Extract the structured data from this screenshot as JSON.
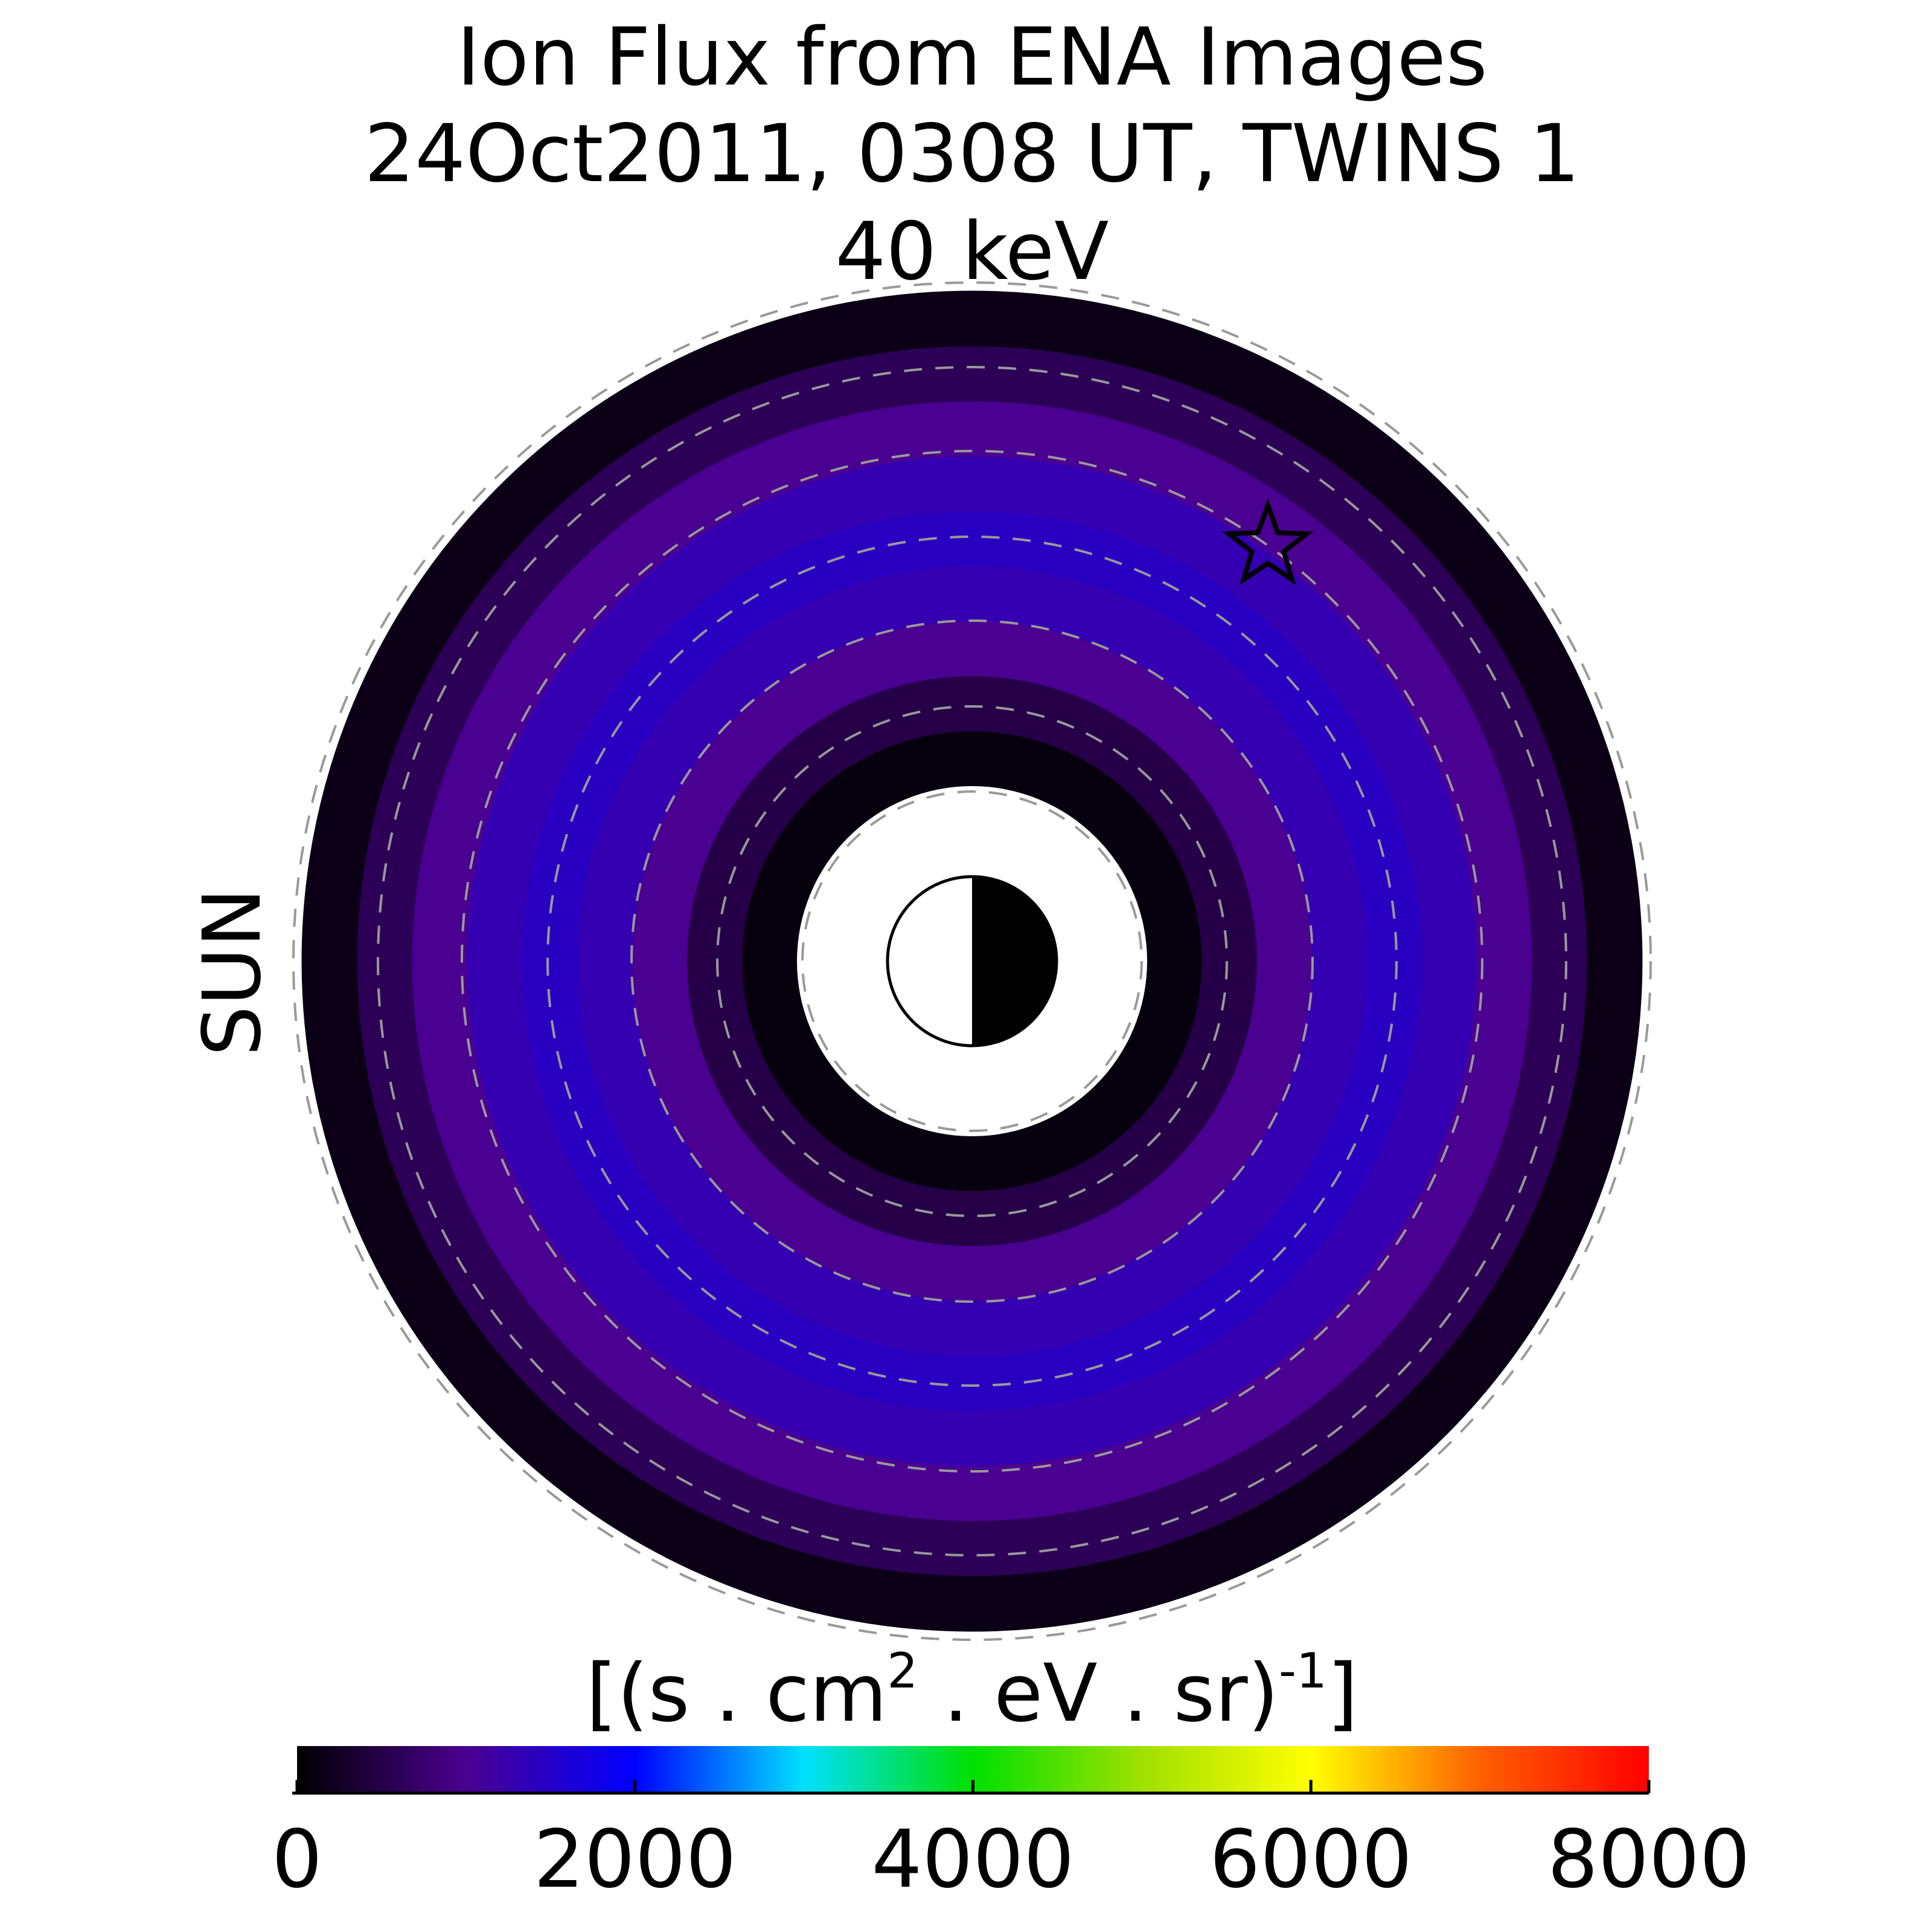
{
  "chart_data": {
    "type": "polar_image",
    "title": [
      "Ion Flux from  ENA Images",
      "24Oct2011, 0308 UT,  TWINS 1",
      "40 keV"
    ],
    "side_label": "SUN",
    "side_label_color": "#f5a000",
    "categories": [
      null,
      null,
      null,
      null,
      null,
      null,
      null,
      null,
      null
    ],
    "values": [
      100,
      500,
      1000,
      1300,
      1450,
      1300,
      1000,
      600,
      150
    ],
    "colorbar_label": [
      "[(s . cm",
      "2",
      "  . eV . sr)",
      "-1",
      "]"
    ],
    "colormap": [
      "#000000",
      "#4a0090",
      "#0000ff",
      "#00e0ff",
      "#00e000",
      "#a0e000",
      "#ffff00",
      "#ff6000",
      "#ff0000"
    ],
    "xlim": [
      0,
      8000
    ],
    "xticks": [
      0,
      2000,
      4000,
      6000,
      8000
    ]
  }
}
